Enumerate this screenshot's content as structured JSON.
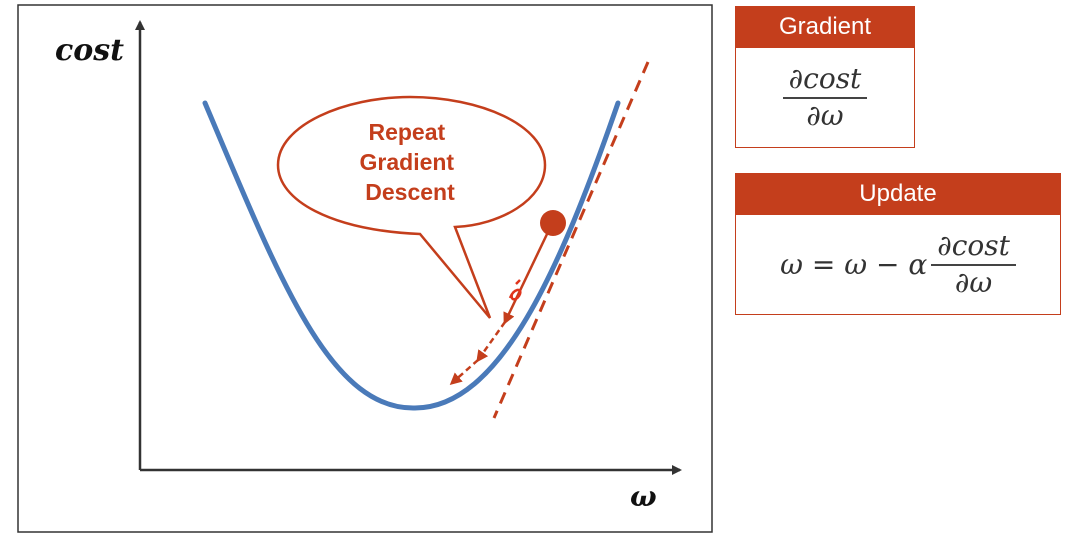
{
  "plot": {
    "y_axis_label": "cost",
    "x_axis_label": "ω",
    "callout_lines": [
      "Repeat",
      "Gradient",
      "Descent"
    ]
  },
  "gradient_box": {
    "header": "Gradient",
    "numerator": "∂cost",
    "denominator": "∂ω"
  },
  "update_box": {
    "header": "Update",
    "lhs": "ω = ω − α",
    "numerator": "∂cost",
    "denominator": "∂ω"
  },
  "colors": {
    "curve": "#4a7ab9",
    "accent": "#c43e1c",
    "axis": "#333333"
  }
}
